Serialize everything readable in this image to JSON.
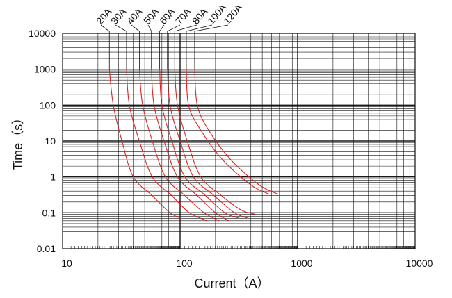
{
  "chart_data": {
    "type": "line",
    "title": "",
    "xlabel": "Current（A）",
    "ylabel": "Time（s）",
    "xscale": "log",
    "yscale": "log",
    "xlim": [
      10,
      10000
    ],
    "ylim": [
      0.01,
      10000
    ],
    "grid": true,
    "x_tick_labels": [
      "10",
      "100",
      "1000",
      "10000"
    ],
    "y_tick_labels": [
      "10000",
      "1000",
      "100",
      "10",
      "1",
      "0.1",
      "0.01"
    ],
    "line_color": "#e02020",
    "series": [
      {
        "name": "20A",
        "x": [
          25,
          27,
          32,
          40,
          58,
          82,
          102
        ],
        "y": [
          1000,
          100,
          10,
          1,
          0.3,
          0.1,
          0.07
        ]
      },
      {
        "name": "30A",
        "x": [
          35,
          37,
          45,
          58,
          85,
          120,
          170
        ],
        "y": [
          1000,
          100,
          10,
          1,
          0.3,
          0.1,
          0.06
        ]
      },
      {
        "name": "40A",
        "x": [
          45,
          48,
          58,
          75,
          110,
          160,
          215
        ],
        "y": [
          1000,
          100,
          10,
          1,
          0.3,
          0.1,
          0.06
        ]
      },
      {
        "name": "50A",
        "x": [
          57,
          60,
          73,
          95,
          140,
          200,
          260
        ],
        "y": [
          1000,
          100,
          10,
          1,
          0.3,
          0.1,
          0.06
        ]
      },
      {
        "name": "60A",
        "x": [
          67,
          70,
          85,
          110,
          165,
          240,
          320
        ],
        "y": [
          1000,
          100,
          10,
          1,
          0.3,
          0.1,
          0.07
        ]
      },
      {
        "name": "70A",
        "x": [
          78,
          82,
          100,
          130,
          195,
          290,
          380
        ],
        "y": [
          1000,
          100,
          10,
          1,
          0.3,
          0.1,
          0.07
        ]
      },
      {
        "name": "80A",
        "x": [
          90,
          95,
          115,
          150,
          225,
          330,
          440
        ],
        "y": [
          1000,
          100,
          10,
          1,
          0.3,
          0.12,
          0.09
        ]
      },
      {
        "name": "100A",
        "x": [
          113,
          118,
          150,
          230,
          400,
          570
        ],
        "y": [
          1000,
          100,
          20,
          3,
          0.6,
          0.33
        ]
      },
      {
        "name": "120A",
        "x": [
          133,
          140,
          175,
          270,
          470,
          680
        ],
        "y": [
          1000,
          100,
          20,
          3,
          0.6,
          0.33
        ]
      }
    ]
  }
}
